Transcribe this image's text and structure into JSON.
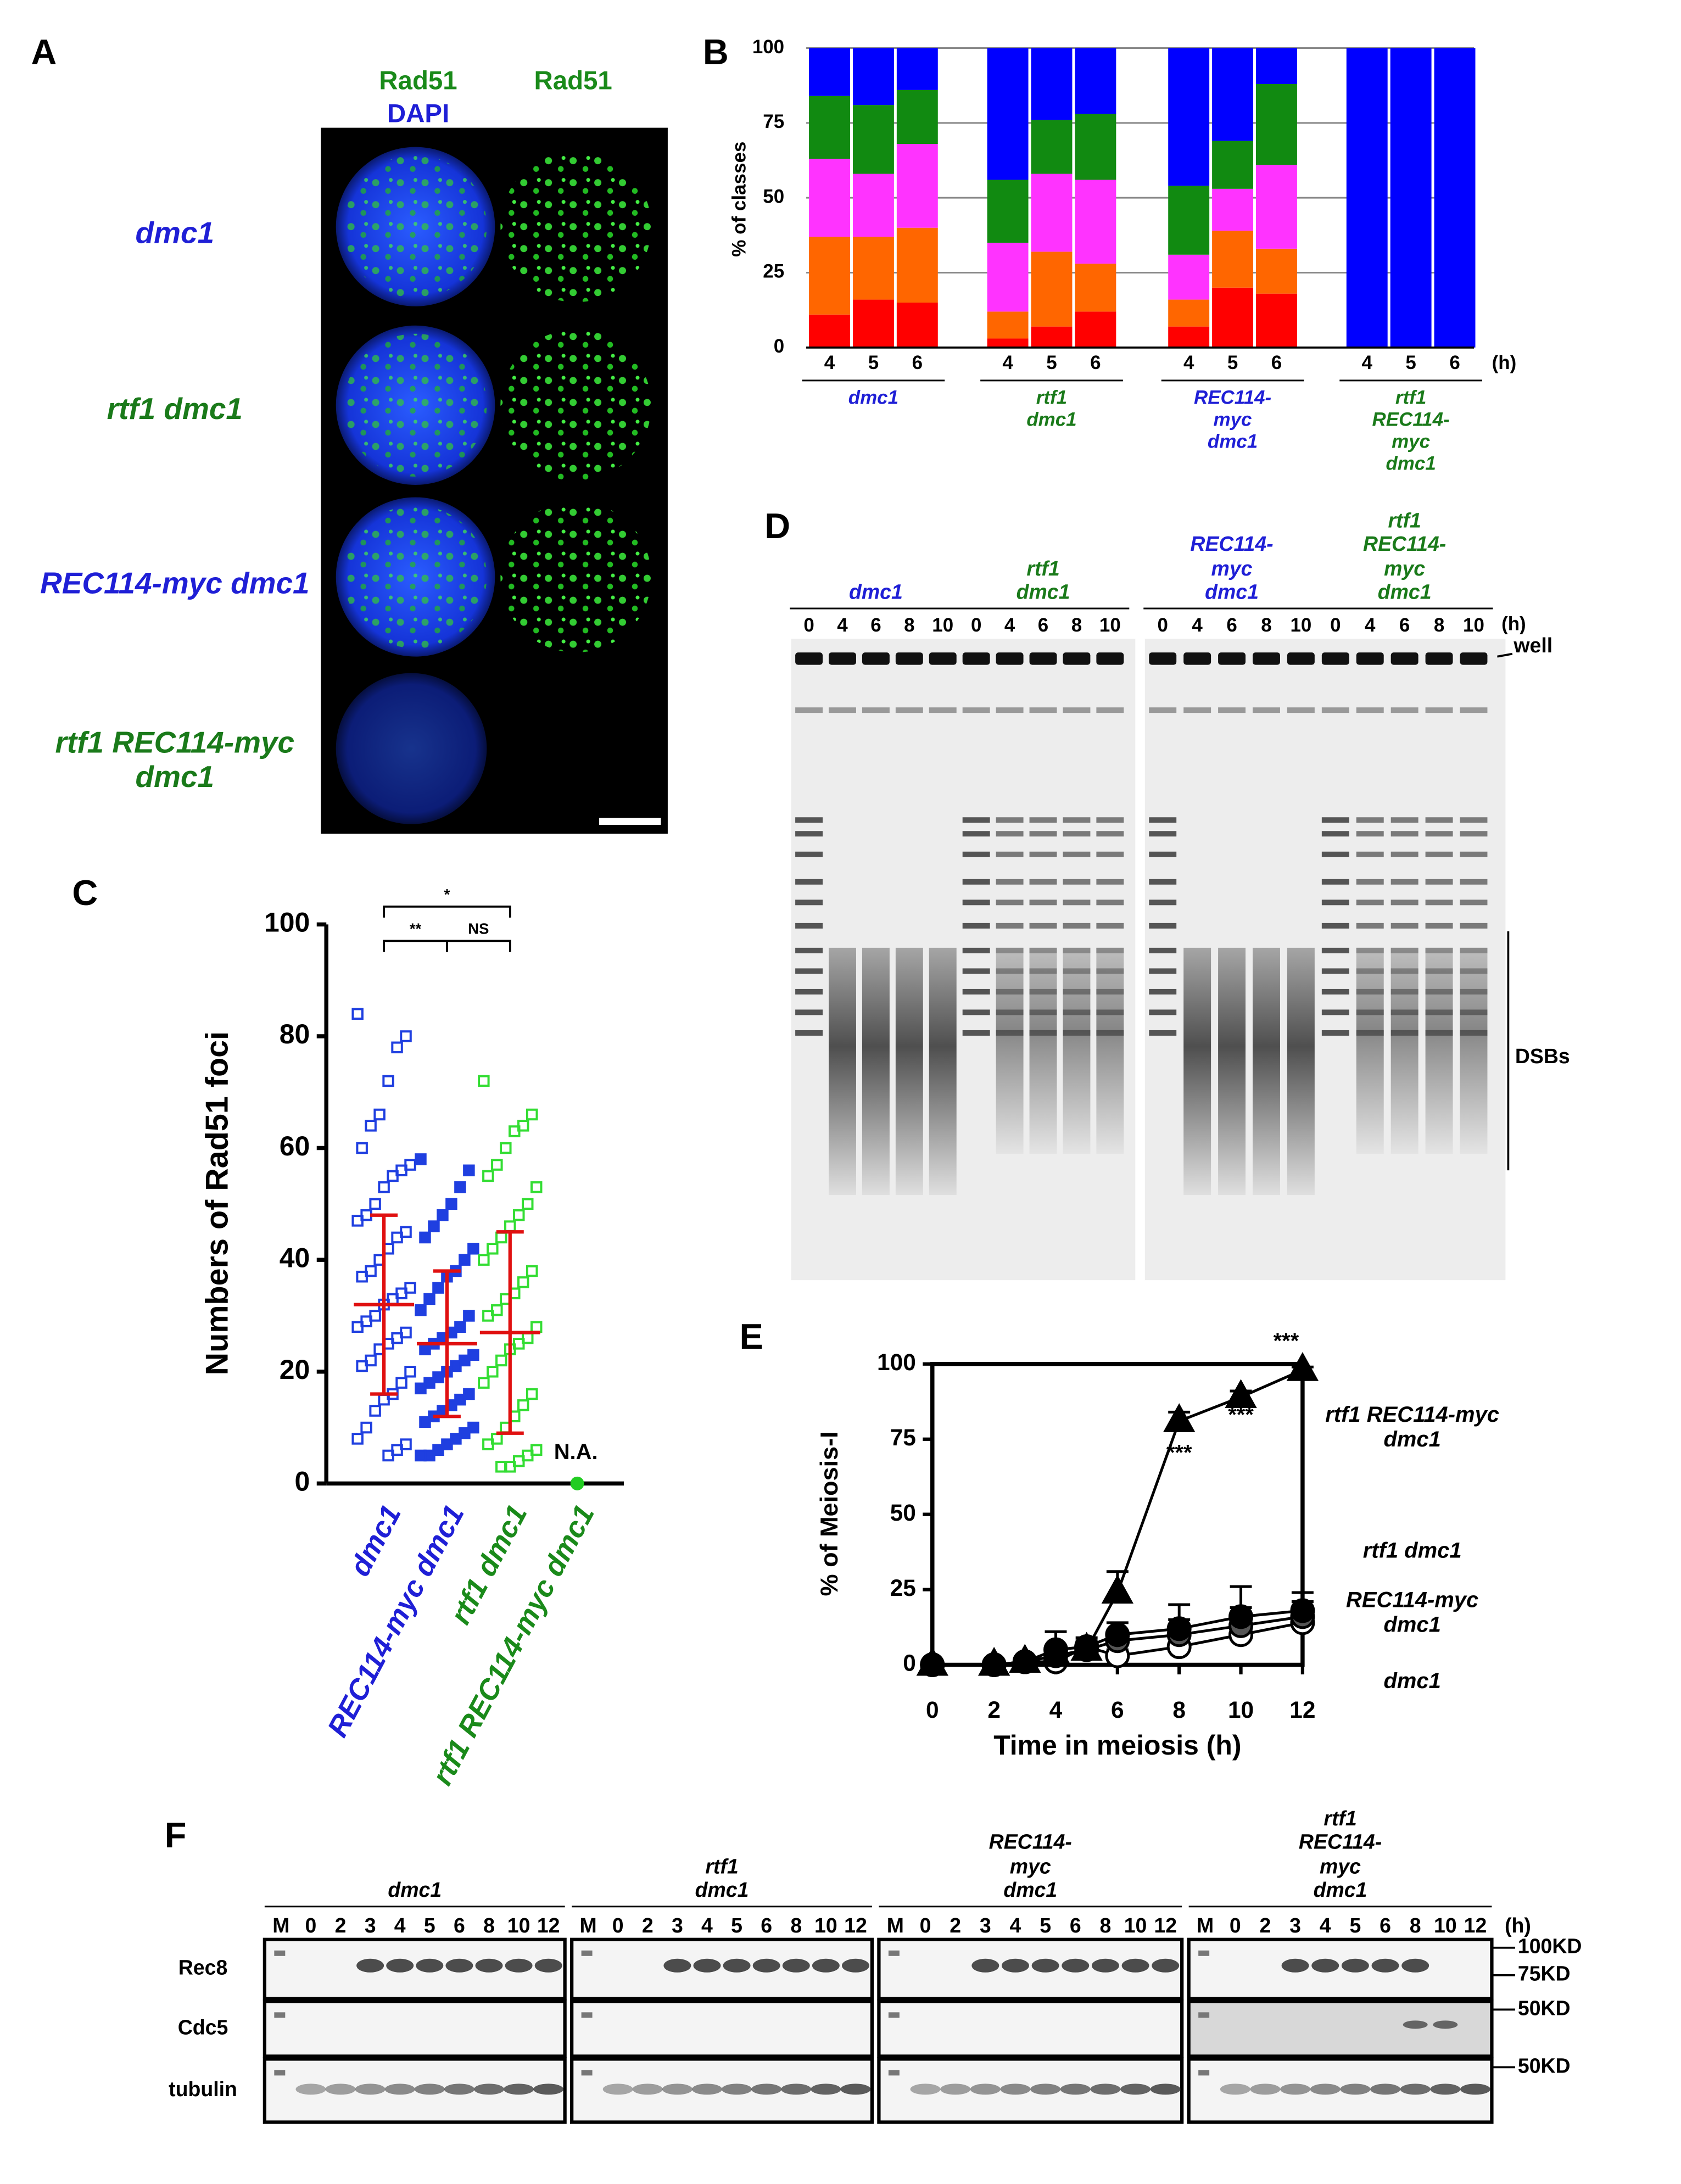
{
  "panel_labels": [
    "A",
    "B",
    "C",
    "D",
    "E",
    "F"
  ],
  "panel_a": {
    "column_headers": [
      "Rad51",
      "DAPI",
      "Rad51"
    ],
    "rows": [
      "dmc1",
      "rtf1 dmc1",
      "REC114-myc dmc1",
      "rtf1 REC114-myc dmc1"
    ],
    "row_colors": [
      "#1f1fd6",
      "#1a7a1a",
      "#1f1fd6",
      "#1a7a1a"
    ]
  },
  "panel_d": {
    "groups": [
      {
        "label": "dmc1",
        "color": "#1f1fd6"
      },
      {
        "label": "rtf1 dmc1",
        "color": "#1a7a1a"
      },
      {
        "label": "REC114-myc dmc1",
        "color": "#1f1fd6"
      },
      {
        "label": "rtf1 REC114-myc dmc1",
        "color": "#1a7a1a"
      }
    ],
    "lanes": [
      "0",
      "4",
      "6",
      "8",
      "10"
    ],
    "unit": "(h)",
    "well": "well",
    "dsbs": "DSBs"
  },
  "panel_f": {
    "groups": [
      "dmc1",
      "rtf1 dmc1",
      "REC114-myc dmc1",
      "rtf1 REC114-myc dmc1"
    ],
    "lanes": [
      "M",
      "0",
      "2",
      "3",
      "4",
      "5",
      "6",
      "8",
      "10",
      "12"
    ],
    "unit": "(h)",
    "rows": [
      "Rec8",
      "Cdc5",
      "tubulin"
    ],
    "markers": [
      "100KD",
      "75KD",
      "50KD",
      "50KD"
    ]
  },
  "chart_data": [
    {
      "type": "bar",
      "stacked": true,
      "ylabel": "% of classes",
      "x_unit": "(h)",
      "categories": [
        "4",
        "5",
        "6",
        "4",
        "5",
        "6",
        "4",
        "5",
        "6",
        "4",
        "5",
        "6"
      ],
      "groups": [
        {
          "label": "dmc1",
          "color": "#1f1fd6"
        },
        {
          "label": "rtf1 dmc1",
          "color": "#1a7a1a"
        },
        {
          "label": "REC114-myc dmc1",
          "color": "#1f1fd6"
        },
        {
          "label": "rtf1 REC114-myc dmc1",
          "color": "#1a7a1a"
        }
      ],
      "series": [
        {
          "color": "#ff0000",
          "values": [
            11,
            16,
            15,
            3,
            7,
            12,
            7,
            20,
            18,
            0,
            0,
            0
          ]
        },
        {
          "color": "#ff6600",
          "values": [
            26,
            21,
            25,
            9,
            25,
            16,
            9,
            19,
            15,
            0,
            0,
            0
          ]
        },
        {
          "color": "#ff33ff",
          "values": [
            26,
            21,
            28,
            23,
            26,
            28,
            15,
            14,
            28,
            0,
            0,
            0
          ]
        },
        {
          "color": "#118a11",
          "values": [
            21,
            23,
            18,
            21,
            18,
            22,
            23,
            16,
            27,
            0,
            0,
            0
          ]
        },
        {
          "color": "#0000ff",
          "values": [
            16,
            19,
            14,
            44,
            24,
            22,
            46,
            31,
            12,
            100,
            100,
            100
          ]
        }
      ],
      "ylim": [
        0,
        100
      ],
      "yticks": [
        0,
        25,
        50,
        75,
        100
      ],
      "grid": true
    },
    {
      "type": "strip",
      "ylabel": "Numbers of Rad51 foci",
      "categories": [
        "dmc1",
        "REC114-myc dmc1",
        "rtf1 dmc1",
        "rtf1 REC114-myc dmc1"
      ],
      "groups": [
        {
          "color": "#1f3fe0",
          "filled": false,
          "values": [
            84,
            80,
            78,
            72,
            66,
            64,
            60,
            57,
            56,
            55,
            53,
            50,
            48,
            47,
            45,
            44,
            42,
            40,
            38,
            37,
            35,
            34,
            33,
            32,
            30,
            29,
            28,
            27,
            26,
            25,
            24,
            22,
            21,
            20,
            18,
            16,
            15,
            13,
            10,
            8,
            7,
            6,
            5
          ],
          "mean": 32,
          "sd": 16
        },
        {
          "color": "#1f3fe0",
          "filled": true,
          "values": [
            58,
            56,
            53,
            50,
            48,
            46,
            44,
            42,
            40,
            38,
            37,
            35,
            33,
            31,
            30,
            28,
            27,
            26,
            25,
            24,
            23,
            22,
            21,
            20,
            19,
            18,
            17,
            16,
            15,
            14,
            13,
            12,
            11,
            10,
            9,
            8,
            7,
            6,
            5,
            5
          ],
          "mean": 25,
          "sd": 13
        },
        {
          "color": "#33dd33",
          "filled": false,
          "values": [
            72,
            66,
            64,
            63,
            60,
            57,
            55,
            53,
            50,
            48,
            46,
            44,
            42,
            40,
            38,
            36,
            34,
            33,
            31,
            30,
            28,
            26,
            25,
            24,
            22,
            20,
            18,
            16,
            14,
            12,
            10,
            8,
            7,
            6,
            5,
            4,
            3,
            3
          ],
          "mean": 27,
          "sd": 18
        },
        {
          "color": "#22cc22",
          "filled": true,
          "values": [
            0
          ]
        }
      ],
      "na_label": "N.A.",
      "annotations": [
        "*",
        "**",
        "NS"
      ],
      "ylim": [
        0,
        100
      ],
      "yticks": [
        0,
        20,
        40,
        60,
        80,
        100
      ]
    },
    {
      "type": "line",
      "xlabel": "Time in meiosis (h)",
      "ylabel": "% of Meiosis-I",
      "x": [
        0,
        2,
        3,
        4,
        5,
        6,
        8,
        10,
        12
      ],
      "series": [
        {
          "name": "rtf1 REC114-myc dmc1",
          "marker": "triangle",
          "fill": "#000000",
          "values": [
            0,
            0,
            1,
            3,
            5,
            24,
            81,
            89,
            98
          ],
          "errors": [
            0,
            0,
            1,
            2,
            2,
            7,
            3,
            2,
            1
          ]
        },
        {
          "name": "rtf1 dmc1",
          "marker": "circle",
          "fill": "#000000",
          "values": [
            0,
            0,
            1,
            5,
            6,
            10,
            12,
            16,
            18
          ],
          "errors": [
            0,
            0,
            1,
            6,
            2,
            4,
            8,
            10,
            6
          ]
        },
        {
          "name": "REC114-myc dmc1",
          "marker": "circle",
          "fill": "#555555",
          "values": [
            0,
            0,
            1,
            3,
            5,
            8,
            10,
            13,
            16
          ],
          "errors": [
            0,
            0,
            1,
            3,
            2,
            3,
            5,
            6,
            5
          ]
        },
        {
          "name": "dmc1",
          "marker": "circle",
          "fill": "#ffffff",
          "values": [
            0,
            0,
            1,
            1,
            6,
            3,
            6,
            10,
            14
          ],
          "errors": [
            0,
            0,
            1,
            2,
            3,
            2,
            3,
            5,
            5
          ]
        }
      ],
      "annotations": [
        "***",
        "***",
        "***"
      ],
      "xlim": [
        0,
        12
      ],
      "xticks": [
        0,
        2,
        4,
        6,
        8,
        10,
        12
      ],
      "ylim": [
        0,
        100
      ],
      "yticks": [
        0,
        25,
        50,
        75,
        100
      ]
    }
  ]
}
